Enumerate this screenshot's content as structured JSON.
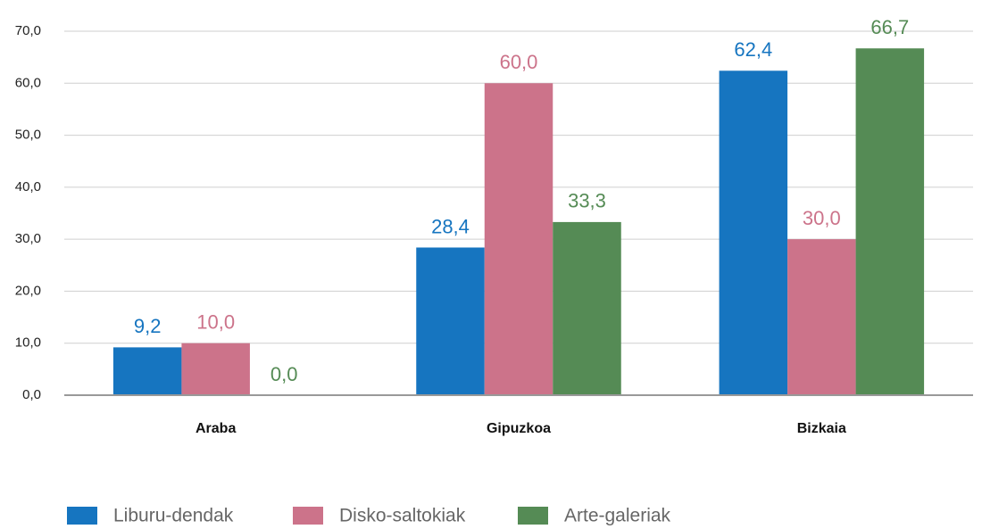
{
  "chart_data": {
    "type": "bar",
    "categories": [
      "Araba",
      "Gipuzkoa",
      "Bizkaia"
    ],
    "series": [
      {
        "name": "Liburu-dendak",
        "color": "#1675c0",
        "values": [
          9.2,
          28.4,
          62.4
        ],
        "value_labels": [
          "9,2",
          "28,4",
          "62,4"
        ]
      },
      {
        "name": "Disko-saltokiak",
        "color": "#cc738a",
        "values": [
          10.0,
          60.0,
          30.0
        ],
        "value_labels": [
          "10,0",
          "60,0",
          "30,0"
        ]
      },
      {
        "name": "Arte-galeriak",
        "color": "#558b55",
        "values": [
          0.0,
          33.3,
          66.7
        ],
        "value_labels": [
          "0,0",
          "33,3",
          "66,7"
        ]
      }
    ],
    "ylim": [
      0,
      70
    ],
    "yticks": [
      {
        "value": 0,
        "label": "0,0"
      },
      {
        "value": 10,
        "label": "10,0"
      },
      {
        "value": 20,
        "label": "20,0"
      },
      {
        "value": 30,
        "label": "30,0"
      },
      {
        "value": 40,
        "label": "40,0"
      },
      {
        "value": 50,
        "label": "50,0"
      },
      {
        "value": 60,
        "label": "60,0"
      },
      {
        "value": 70,
        "label": "70,0"
      }
    ],
    "grid": true
  }
}
